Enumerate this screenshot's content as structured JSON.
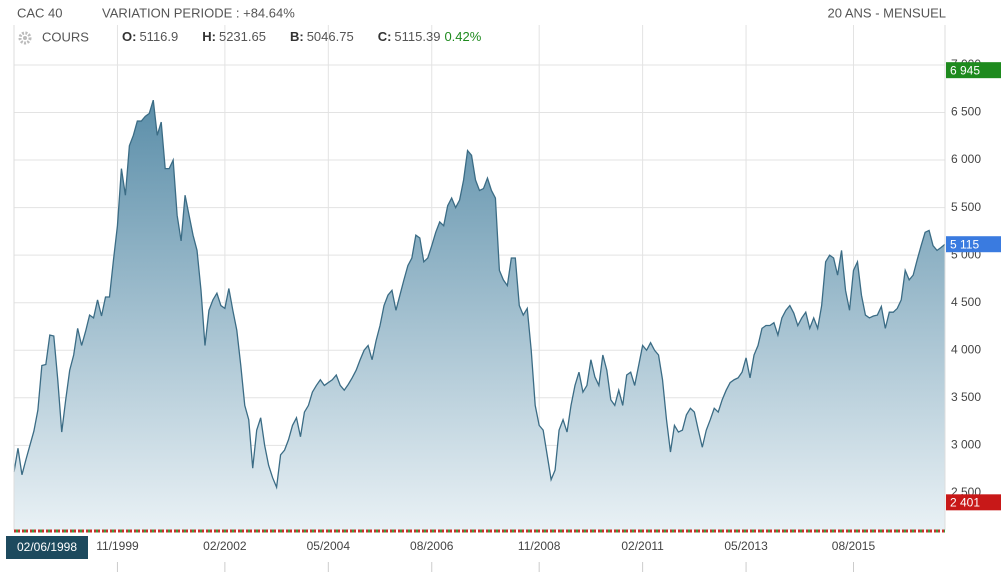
{
  "header": {
    "index": "CAC 40",
    "variation": "VARIATION PERIODE : +84.64%",
    "period": "20 ANS - MENSUEL"
  },
  "quote": {
    "open_label": "O:",
    "open": "5116.9",
    "high_label": "H:",
    "high": "5231.65",
    "low_label": "B:",
    "low": "5046.75",
    "close_label": "C:",
    "close": "5115.39",
    "change": "0.42%"
  },
  "chart_data": {
    "type": "area",
    "cursor_date": "02/06/1998",
    "categories": [
      null,
      null,
      null,
      null,
      null,
      null,
      null,
      null,
      null,
      null,
      null,
      null,
      null,
      null,
      null,
      null,
      null,
      null,
      null,
      null,
      null,
      null,
      null,
      null,
      null,
      null,
      "11/1999",
      null,
      null,
      null,
      null,
      null,
      null,
      null,
      null,
      null,
      null,
      null,
      null,
      null,
      null,
      null,
      null,
      null,
      null,
      null,
      null,
      null,
      null,
      null,
      null,
      null,
      null,
      "02/2002",
      null,
      null,
      null,
      null,
      null,
      null,
      null,
      null,
      null,
      null,
      null,
      null,
      null,
      null,
      null,
      null,
      null,
      null,
      null,
      null,
      null,
      null,
      null,
      null,
      null,
      "05/2004",
      null,
      null,
      null,
      null,
      null,
      null,
      null,
      null,
      null,
      null,
      null,
      null,
      null,
      null,
      null,
      null,
      null,
      null,
      null,
      null,
      null,
      null,
      null,
      null,
      null,
      "08/2006",
      null,
      null,
      null,
      null,
      null,
      null,
      null,
      null,
      null,
      null,
      null,
      null,
      null,
      null,
      null,
      null,
      null,
      null,
      null,
      null,
      null,
      null,
      null,
      null,
      null,
      null,
      "11/2008",
      null,
      null,
      null,
      null,
      null,
      null,
      null,
      null,
      null,
      null,
      null,
      null,
      null,
      null,
      null,
      null,
      null,
      null,
      null,
      null,
      null,
      null,
      null,
      null,
      null,
      "02/2011",
      null,
      null,
      null,
      null,
      null,
      null,
      null,
      null,
      null,
      null,
      null,
      null,
      null,
      null,
      null,
      null,
      null,
      null,
      null,
      null,
      null,
      null,
      null,
      null,
      null,
      "05/2013",
      null,
      null,
      null,
      null,
      null,
      null,
      null,
      null,
      null,
      null,
      null,
      null,
      null,
      null,
      null,
      null,
      null,
      null,
      null,
      null,
      null,
      null,
      null,
      null,
      null,
      null,
      "08/2015",
      null,
      null,
      null,
      null,
      null,
      null,
      null,
      null,
      null,
      null,
      null,
      null,
      null,
      null,
      null,
      null,
      null,
      null,
      null,
      null,
      null,
      null,
      null
    ],
    "series": [
      {
        "name": "COURS",
        "color": "#3b6c85",
        "values": [
          2720,
          2970,
          2690,
          2850,
          3000,
          3150,
          3370,
          3840,
          3850,
          4160,
          4150,
          3690,
          3140,
          3480,
          3790,
          3950,
          4230,
          4050,
          4200,
          4370,
          4340,
          4530,
          4360,
          4560,
          4560,
          4950,
          5310,
          5910,
          5630,
          6150,
          6260,
          6410,
          6410,
          6460,
          6490,
          6630,
          6260,
          6400,
          5910,
          5910,
          6000,
          5420,
          5150,
          5630,
          5420,
          5210,
          5050,
          4630,
          4050,
          4420,
          4530,
          4600,
          4470,
          4440,
          4650,
          4420,
          4210,
          3840,
          3420,
          3270,
          2760,
          3160,
          3290,
          3000,
          2790,
          2660,
          2560,
          2900,
          2950,
          3060,
          3210,
          3290,
          3090,
          3350,
          3420,
          3560,
          3630,
          3690,
          3630,
          3660,
          3690,
          3740,
          3630,
          3580,
          3640,
          3710,
          3790,
          3900,
          4000,
          4050,
          3900,
          4100,
          4260,
          4470,
          4580,
          4630,
          4420,
          4580,
          4740,
          4890,
          4970,
          5210,
          5180,
          4930,
          4970,
          5100,
          5240,
          5350,
          5310,
          5520,
          5600,
          5500,
          5580,
          5790,
          6100,
          6050,
          5790,
          5680,
          5700,
          5810,
          5680,
          5600,
          4840,
          4740,
          4680,
          4970,
          4970,
          4470,
          4370,
          4440,
          4000,
          3420,
          3210,
          3160,
          2900,
          2640,
          2740,
          3160,
          3270,
          3140,
          3420,
          3630,
          3770,
          3560,
          3630,
          3900,
          3720,
          3630,
          3950,
          3790,
          3480,
          3420,
          3580,
          3420,
          3740,
          3770,
          3630,
          3840,
          4050,
          4000,
          4080,
          4000,
          3950,
          3690,
          3270,
          2930,
          3210,
          3140,
          3160,
          3320,
          3390,
          3350,
          3160,
          2980,
          3160,
          3270,
          3390,
          3350,
          3480,
          3580,
          3660,
          3690,
          3710,
          3770,
          3920,
          3710,
          3950,
          4050,
          4230,
          4260,
          4260,
          4290,
          4160,
          4340,
          4420,
          4470,
          4390,
          4260,
          4340,
          4400,
          4230,
          4340,
          4230,
          4470,
          4930,
          5000,
          4970,
          4790,
          5050,
          4630,
          4420,
          4840,
          4930,
          4580,
          4370,
          4340,
          4360,
          4370,
          4460,
          4230,
          4400,
          4400,
          4440,
          4530,
          4840,
          4740,
          4790,
          4950,
          5100,
          5240,
          5260,
          5100,
          5050,
          5080,
          5115
        ]
      }
    ],
    "ylim": [
      2110,
      7420
    ],
    "yticks": [
      {
        "value": 2500,
        "label": "2 500"
      },
      {
        "value": 3000,
        "label": "3 000"
      },
      {
        "value": 3500,
        "label": "3 500"
      },
      {
        "value": 4000,
        "label": "4 000"
      },
      {
        "value": 4500,
        "label": "4 500"
      },
      {
        "value": 5000,
        "label": "5 000"
      },
      {
        "value": 5500,
        "label": "5 500"
      },
      {
        "value": 6000,
        "label": "6 000"
      },
      {
        "value": 6500,
        "label": "6 500"
      },
      {
        "value": 7000,
        "label": "7 000"
      }
    ],
    "grid": true,
    "badges": [
      {
        "value": 6945,
        "label": "6 945",
        "color": "#1e8a1e"
      },
      {
        "value": 5115,
        "label": "5 115",
        "color": "#3a7be0"
      },
      {
        "value": 2401,
        "label": "2 401",
        "color": "#c81818"
      }
    ]
  }
}
